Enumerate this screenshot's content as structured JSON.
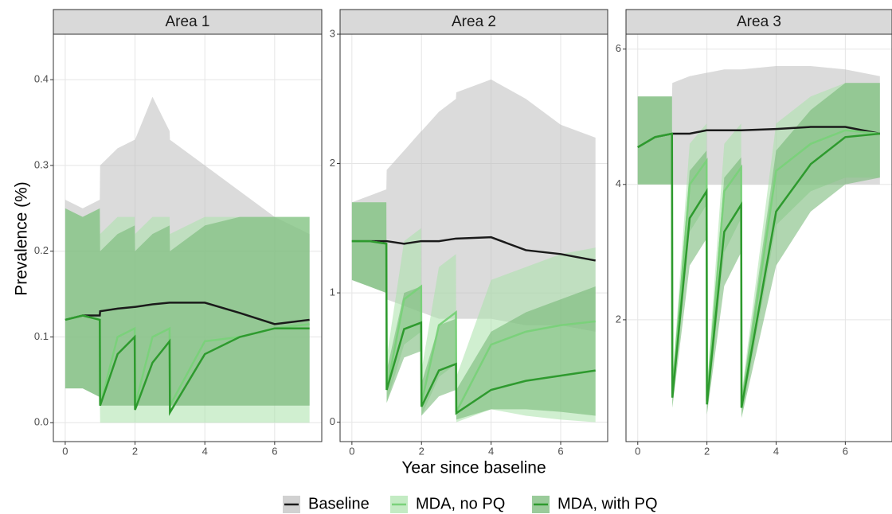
{
  "chart_data": [
    {
      "type": "line",
      "title": "Area 1",
      "y_label": "Prevalence (%)",
      "x": [
        0,
        0.5,
        0.99,
        1,
        1.5,
        1.99,
        2,
        2.5,
        2.99,
        3,
        4,
        5,
        6,
        7
      ],
      "xlim": [
        -0.34,
        7.35
      ],
      "xticks": [
        0,
        2,
        4,
        6
      ],
      "ylim": [
        -0.022,
        0.453
      ],
      "yticks": [
        {
          "value": 0,
          "label": "0.0"
        },
        {
          "value": 0.1,
          "label": "0.1"
        },
        {
          "value": 0.2,
          "label": "0.2"
        },
        {
          "value": 0.3,
          "label": "0.3"
        },
        {
          "value": 0.4,
          "label": "0.4"
        }
      ],
      "grid": true,
      "series": [
        {
          "name": "Baseline",
          "color": "#1a1a1a",
          "fill": "#bdbdbd",
          "values": [
            0.12,
            0.125,
            0.125,
            0.13,
            0.133,
            0.135,
            0.135,
            0.138,
            0.14,
            0.14,
            0.14,
            0.128,
            0.115,
            0.12
          ],
          "lower": [
            0.04,
            0.04,
            0.03,
            0.02,
            0.02,
            0.02,
            0.02,
            0.02,
            0.02,
            0.02,
            0.02,
            0.02,
            0.02,
            0.02
          ],
          "upper": [
            0.26,
            0.25,
            0.26,
            0.3,
            0.32,
            0.33,
            0.33,
            0.38,
            0.34,
            0.33,
            0.3,
            0.27,
            0.24,
            0.22
          ]
        },
        {
          "name": "MDA, no PQ",
          "color": "#7bd17b",
          "fill": "#a9e2a9",
          "values": [
            0.12,
            0.125,
            0.12,
            0.02,
            0.1,
            0.11,
            0.02,
            0.1,
            0.11,
            0.02,
            0.095,
            0.1,
            0.11,
            0.115
          ],
          "lower": [
            0.04,
            0.04,
            0.03,
            0,
            0,
            0,
            0,
            0,
            0,
            0,
            0,
            0,
            0,
            0
          ],
          "upper": [
            0.25,
            0.24,
            0.25,
            0.22,
            0.24,
            0.24,
            0.22,
            0.24,
            0.24,
            0.22,
            0.24,
            0.24,
            0.24,
            0.24
          ]
        },
        {
          "name": "MDA, with PQ",
          "color": "#2e9a2e",
          "fill": "#6fb56f",
          "values": [
            0.12,
            0.125,
            0.12,
            0.02,
            0.08,
            0.1,
            0.015,
            0.07,
            0.095,
            0.012,
            0.08,
            0.1,
            0.11,
            0.11
          ],
          "lower": [
            0.04,
            0.04,
            0.03,
            0.02,
            0.02,
            0.02,
            0.02,
            0.02,
            0.02,
            0.02,
            0.02,
            0.02,
            0.02,
            0.02
          ],
          "upper": [
            0.25,
            0.24,
            0.25,
            0.2,
            0.22,
            0.23,
            0.2,
            0.22,
            0.23,
            0.2,
            0.23,
            0.24,
            0.24,
            0.24
          ]
        }
      ]
    },
    {
      "type": "line",
      "title": "Area 2",
      "x_label": "Year since baseline",
      "x": [
        0,
        0.5,
        0.99,
        1,
        1.5,
        1.99,
        2,
        2.5,
        2.99,
        3,
        4,
        5,
        6,
        7
      ],
      "xlim": [
        -0.34,
        7.35
      ],
      "xticks": [
        0,
        2,
        4,
        6
      ],
      "ylim": [
        -0.15,
        3.0
      ],
      "yticks": [
        0,
        1,
        2,
        3
      ],
      "grid": true,
      "series": [
        {
          "color": "#1a1a1a",
          "fill": "#bdbdbd",
          "values": [
            1.4,
            1.4,
            1.4,
            1.4,
            1.38,
            1.4,
            1.4,
            1.4,
            1.42,
            1.42,
            1.43,
            1.33,
            1.3,
            1.25
          ],
          "lower": [
            1.1,
            1.05,
            1.0,
            0.95,
            0.9,
            0.85,
            0.85,
            0.8,
            0.8,
            0.8,
            0.8,
            0.75,
            0.75,
            0.7
          ],
          "upper": [
            1.7,
            1.75,
            1.8,
            1.95,
            2.1,
            2.25,
            2.25,
            2.4,
            2.5,
            2.55,
            2.65,
            2.5,
            2.3,
            2.2
          ]
        },
        {
          "color": "#7bd17b",
          "fill": "#a9e2a9",
          "values": [
            1.4,
            1.4,
            1.38,
            0.25,
            0.95,
            1.05,
            0.15,
            0.75,
            0.85,
            0.08,
            0.6,
            0.7,
            0.75,
            0.78
          ],
          "lower": [
            1.1,
            1.05,
            1.0,
            0.15,
            0.6,
            0.7,
            0.05,
            0.35,
            0.45,
            0,
            0.1,
            0.05,
            0.02,
            0
          ],
          "upper": [
            1.7,
            1.7,
            1.7,
            0.5,
            1.4,
            1.5,
            0.4,
            1.2,
            1.3,
            0.35,
            1.1,
            1.2,
            1.3,
            1.35
          ]
        },
        {
          "color": "#2e9a2e",
          "fill": "#6fb56f",
          "values": [
            1.4,
            1.4,
            1.38,
            0.25,
            0.72,
            0.77,
            0.12,
            0.4,
            0.45,
            0.07,
            0.25,
            0.32,
            0.36,
            0.4
          ],
          "lower": [
            1.1,
            1.05,
            1.0,
            0.15,
            0.5,
            0.55,
            0.05,
            0.2,
            0.25,
            0.02,
            0.1,
            0.1,
            0.08,
            0.05
          ],
          "upper": [
            1.7,
            1.7,
            1.7,
            0.4,
            1.0,
            1.05,
            0.3,
            0.75,
            0.8,
            0.25,
            0.7,
            0.85,
            0.95,
            1.05
          ]
        }
      ]
    },
    {
      "type": "line",
      "title": "Area 3",
      "x": [
        0,
        0.5,
        0.99,
        1,
        1.5,
        1.99,
        2,
        2.5,
        2.99,
        3,
        4,
        5,
        6,
        7
      ],
      "xlim": [
        -0.34,
        7.35
      ],
      "xticks": [
        0,
        2,
        4,
        6
      ],
      "ylim": [
        0.2,
        6.22
      ],
      "yticks": [
        2,
        4,
        6
      ],
      "grid": true,
      "series": [
        {
          "color": "#1a1a1a",
          "fill": "#bdbdbd",
          "values": [
            4.55,
            4.7,
            4.75,
            4.75,
            4.75,
            4.8,
            4.8,
            4.8,
            4.8,
            4.8,
            4.82,
            4.85,
            4.85,
            4.75
          ],
          "lower": [
            4.0,
            4.0,
            4.0,
            4.0,
            4.0,
            4.0,
            4.0,
            4.0,
            4.0,
            4.0,
            4.0,
            4.0,
            4.0,
            4.0
          ],
          "upper": [
            5.3,
            5.3,
            5.3,
            5.5,
            5.6,
            5.65,
            5.65,
            5.7,
            5.7,
            5.7,
            5.75,
            5.75,
            5.7,
            5.6
          ]
        },
        {
          "color": "#7bd17b",
          "fill": "#a9e2a9",
          "values": [
            4.55,
            4.7,
            4.75,
            0.9,
            4.0,
            4.35,
            0.8,
            3.9,
            4.25,
            0.7,
            4.2,
            4.6,
            4.8,
            4.75
          ],
          "lower": [
            4.0,
            4.0,
            4.0,
            0.7,
            3.3,
            3.7,
            0.6,
            3.0,
            3.5,
            0.55,
            3.4,
            3.9,
            4.1,
            4.1
          ],
          "upper": [
            5.3,
            5.3,
            5.3,
            1.1,
            4.6,
            4.9,
            1.0,
            4.6,
            4.9,
            0.9,
            4.9,
            5.3,
            5.5,
            5.5
          ]
        },
        {
          "color": "#2e9a2e",
          "fill": "#6fb56f",
          "values": [
            4.55,
            4.7,
            4.75,
            0.85,
            3.5,
            3.9,
            0.75,
            3.3,
            3.7,
            0.7,
            3.6,
            4.3,
            4.7,
            4.75
          ],
          "lower": [
            4.0,
            4.0,
            4.0,
            0.7,
            2.8,
            3.2,
            0.6,
            2.5,
            3.0,
            0.55,
            2.8,
            3.6,
            4.0,
            4.1
          ],
          "upper": [
            5.3,
            5.3,
            5.3,
            1.0,
            4.2,
            4.5,
            0.9,
            4.1,
            4.4,
            0.85,
            4.5,
            5.1,
            5.5,
            5.5
          ]
        }
      ]
    }
  ]
}
